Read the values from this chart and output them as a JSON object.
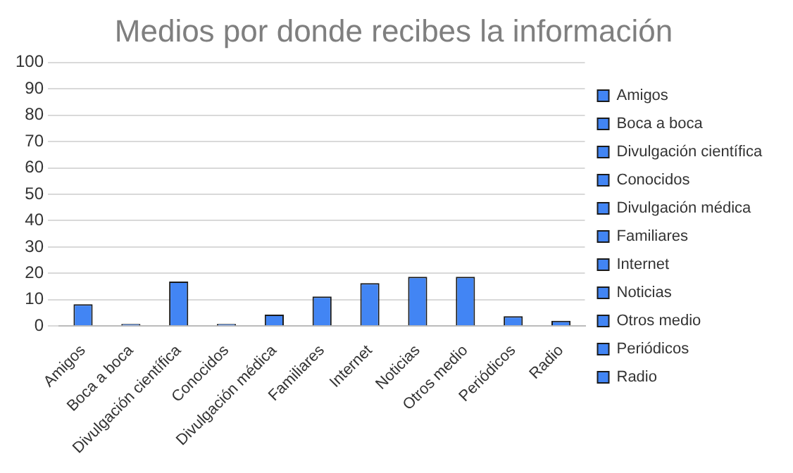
{
  "chart_data": {
    "type": "bar",
    "title": "Medios por donde recibes la información",
    "categories": [
      "Amigos",
      "Boca a boca",
      "Divulgación científica",
      "Conocidos",
      "Divulgación médica",
      "Familiares",
      "Internet",
      "Noticias",
      "Otros medio",
      "Periódicos",
      "Radio"
    ],
    "series": [
      {
        "name": "Amigos",
        "color": "#4285f4",
        "values": [
          8.3,
          null,
          null,
          null,
          null,
          null,
          null,
          null,
          null,
          null,
          null
        ]
      },
      {
        "name": "Boca a boca",
        "color": "#4285f4",
        "values": [
          null,
          0.8,
          null,
          null,
          null,
          null,
          null,
          null,
          null,
          null,
          null
        ]
      },
      {
        "name": "Divulgación científica",
        "color": "#4285f4",
        "values": [
          null,
          null,
          16.9,
          null,
          null,
          null,
          null,
          null,
          null,
          null,
          null
        ]
      },
      {
        "name": "Conocidos",
        "color": "#4285f4",
        "values": [
          null,
          null,
          null,
          0.8,
          null,
          null,
          null,
          null,
          null,
          null,
          null
        ]
      },
      {
        "name": "Divulgación médica",
        "color": "#4285f4",
        "values": [
          null,
          null,
          null,
          null,
          4.3,
          null,
          null,
          null,
          null,
          null,
          null
        ]
      },
      {
        "name": "Familiares",
        "color": "#4285f4",
        "values": [
          null,
          null,
          null,
          null,
          null,
          11.2,
          null,
          null,
          null,
          null,
          null
        ]
      },
      {
        "name": "Internet",
        "color": "#4285f4",
        "values": [
          null,
          null,
          null,
          null,
          null,
          null,
          16.3,
          null,
          null,
          null,
          null
        ]
      },
      {
        "name": "Noticias",
        "color": "#4285f4",
        "values": [
          null,
          null,
          null,
          null,
          null,
          null,
          null,
          18.7,
          null,
          null,
          null
        ]
      },
      {
        "name": "Otros medio",
        "color": "#4285f4",
        "values": [
          null,
          null,
          null,
          null,
          null,
          null,
          null,
          null,
          18.7,
          null,
          null
        ]
      },
      {
        "name": "Periódicos",
        "color": "#4285f4",
        "values": [
          null,
          null,
          null,
          null,
          null,
          null,
          null,
          null,
          null,
          3.7,
          null
        ]
      },
      {
        "name": "Radio",
        "color": "#4285f4",
        "values": [
          null,
          null,
          null,
          null,
          null,
          null,
          null,
          null,
          null,
          null,
          2.0
        ]
      }
    ],
    "ylim": [
      0,
      100
    ],
    "yticks": [
      0,
      10,
      20,
      30,
      40,
      50,
      60,
      70,
      80,
      90,
      100
    ],
    "grid": "y",
    "legend": "right"
  }
}
